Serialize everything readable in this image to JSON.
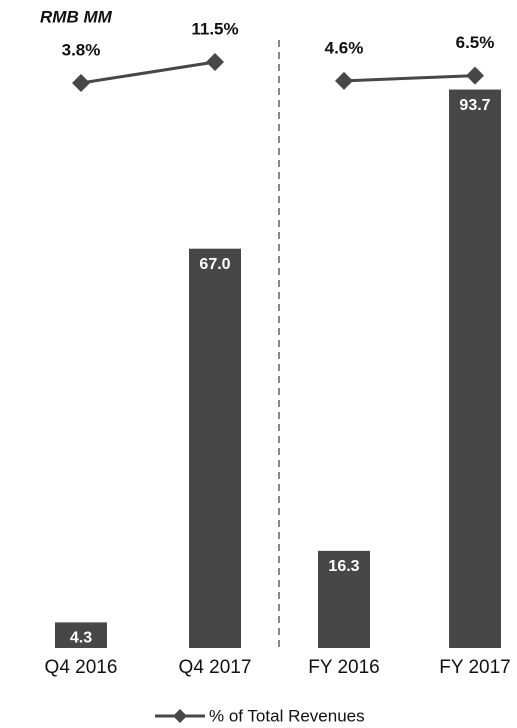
{
  "chart_data": {
    "type": "bar",
    "unit_label": "RMB MM",
    "categories": [
      "Q4 2016",
      "Q4 2017",
      "FY 2016",
      "FY 2017"
    ],
    "values": [
      4.3,
      67.0,
      16.3,
      93.7
    ],
    "value_labels": [
      "4.3",
      "67.0",
      "16.3",
      "93.7"
    ],
    "color": "#474747",
    "series": [
      {
        "name": "% of Total Revenues",
        "color": "#474747",
        "axis": "y2",
        "values": [
          3.8,
          11.5,
          4.6,
          6.5
        ],
        "value_labels": [
          "3.8%",
          "11.5%",
          "4.6%",
          "6.5%"
        ]
      }
    ]
  }
}
